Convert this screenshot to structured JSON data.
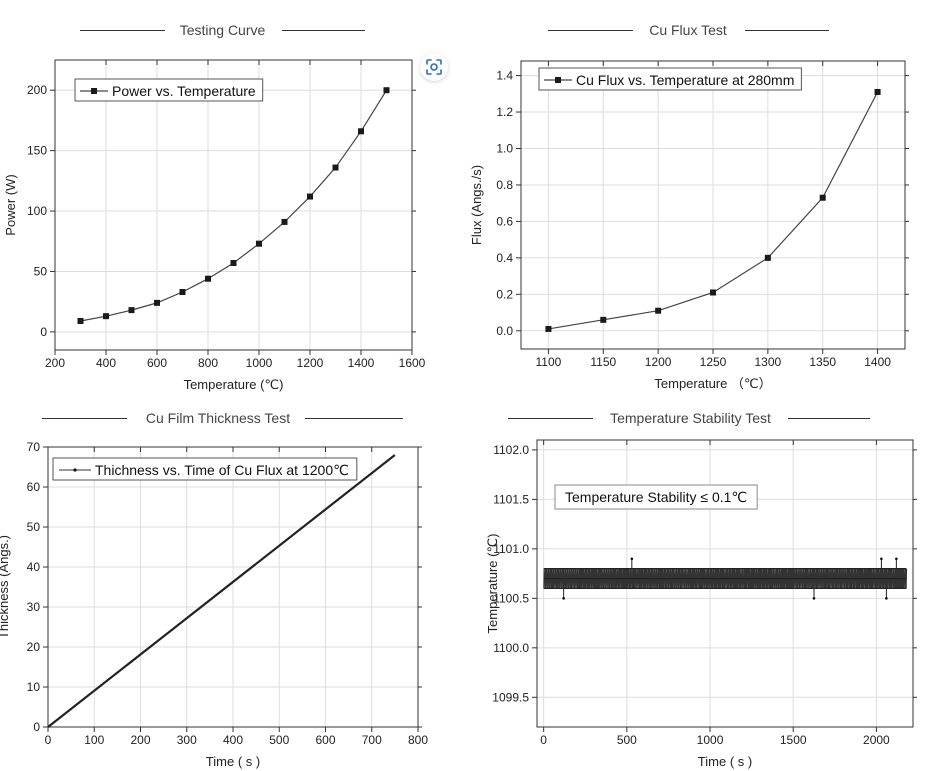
{
  "panels": {
    "p1_title": "Testing Curve",
    "p2_title": "Cu Flux Test",
    "p3_title": "Cu Film Thickness Test",
    "p4_title": "Temperature Stability Test"
  },
  "colors": {
    "line": "#444444",
    "marker": "#1a1a1a",
    "grid": "#dddddd",
    "accent_icon": "#2a6bd4"
  },
  "icons": {
    "zoom": "zoom-scan-icon"
  },
  "chart_data": [
    {
      "type": "line",
      "title": "Testing Curve",
      "xlabel": "Temperature (℃)",
      "ylabel": "Power (W)",
      "xlim": [
        200,
        1600
      ],
      "ylim": [
        -15,
        225
      ],
      "xticks": [
        200,
        400,
        600,
        800,
        1000,
        1200,
        1400,
        1600
      ],
      "yticks": [
        0,
        50,
        100,
        150,
        200
      ],
      "legend": "Power vs. Temperature",
      "series": [
        {
          "name": "Power vs. Temperature",
          "x": [
            300,
            400,
            500,
            600,
            700,
            800,
            900,
            1000,
            1100,
            1200,
            1300,
            1400,
            1500
          ],
          "y": [
            9,
            13,
            18,
            24,
            33,
            44,
            57,
            73,
            91,
            112,
            136,
            166,
            200
          ]
        }
      ]
    },
    {
      "type": "line",
      "title": "Cu Flux Test",
      "xlabel": "Temperature （℃）",
      "ylabel": "Flux (Angs./s)",
      "xlim": [
        1075,
        1425
      ],
      "ylim": [
        -0.1,
        1.48
      ],
      "xticks": [
        1100,
        1150,
        1200,
        1250,
        1300,
        1350,
        1400
      ],
      "yticks": [
        0.0,
        0.2,
        0.4,
        0.6,
        0.8,
        1.0,
        1.2,
        1.4
      ],
      "ytick_labels": [
        "0.0",
        "0.2",
        "0.4",
        "0.6",
        "0.8",
        "1.0",
        "1.2",
        "1.4"
      ],
      "legend": "Cu Flux vs. Temperature at 280mm",
      "series": [
        {
          "name": "Cu Flux vs. Temperature at 280mm",
          "x": [
            1100,
            1150,
            1200,
            1250,
            1300,
            1350,
            1400
          ],
          "y": [
            0.01,
            0.06,
            0.11,
            0.21,
            0.4,
            0.73,
            1.31
          ]
        }
      ]
    },
    {
      "type": "line",
      "title": "Cu Film Thickness Test",
      "xlabel": "Time ( s )",
      "ylabel": "Thickness (Angs.)",
      "xlim": [
        0,
        800
      ],
      "ylim": [
        0,
        70
      ],
      "xticks": [
        0,
        100,
        200,
        300,
        400,
        500,
        600,
        700,
        800
      ],
      "yticks": [
        0,
        10,
        20,
        30,
        40,
        50,
        60,
        70
      ],
      "legend": "Thichness vs. Time of Cu Flux at 1200℃",
      "series": [
        {
          "name": "Thichness vs. Time of Cu Flux at 1200℃",
          "x": [
            0,
            750
          ],
          "y": [
            0,
            68
          ]
        }
      ]
    },
    {
      "type": "line",
      "title": "Temperature Stability Test",
      "xlabel": "Time ( s )",
      "ylabel": "Temperature (℃)",
      "xlim": [
        -40,
        2220
      ],
      "ylim": [
        1099.2,
        1102.1
      ],
      "xticks": [
        0,
        500,
        1000,
        1500,
        2000
      ],
      "yticks": [
        1099.5,
        1100.0,
        1100.5,
        1101.0,
        1101.5,
        1102.0
      ],
      "ytick_labels": [
        "1099.5",
        "1100.0",
        "1100.5",
        "1101.0",
        "1101.5",
        "1102.0"
      ],
      "annotation": "Temperature Stability ≤  0.1℃",
      "series": [
        {
          "name": "Temperature",
          "x_range": [
            0,
            2180
          ],
          "baseline": 1100.7,
          "band": [
            1100.6,
            1100.8
          ],
          "spikes_high": [
            [
              530,
              1100.9
            ],
            [
              2030,
              1100.9
            ],
            [
              2120,
              1100.9
            ]
          ],
          "spikes_low": [
            [
              120,
              1100.5
            ],
            [
              1625,
              1100.5
            ],
            [
              2060,
              1100.5
            ]
          ]
        }
      ]
    }
  ]
}
